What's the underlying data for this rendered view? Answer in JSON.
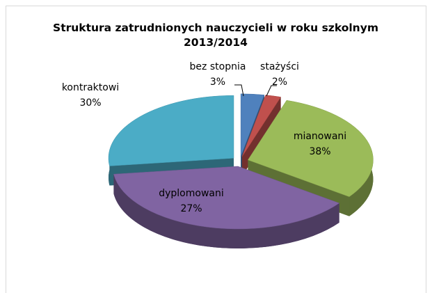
{
  "chart_data": {
    "type": "pie3d",
    "title": "Struktura zatrudnionych nauczycieli w roku szkolnym 2013/2014",
    "categories": [
      "bez stopnia",
      "stażyści",
      "kontraktowi",
      "mianowani",
      "dyplomowani"
    ],
    "values": [
      3,
      2,
      30,
      38,
      27
    ],
    "value_labels": [
      "3%",
      "2%",
      "30%",
      "38%",
      "27%"
    ],
    "colors": [
      "#4f81bd",
      "#c0504d",
      "#9bbb59",
      "#8064a2",
      "#4bacc6"
    ]
  }
}
